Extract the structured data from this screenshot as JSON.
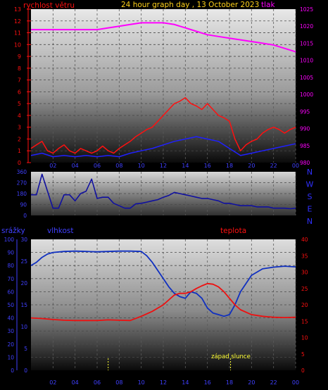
{
  "header": {
    "wind_label": "rychlost větru",
    "title": "24 hour graph day , 13 October 2023",
    "pressure_label": "tlak"
  },
  "lower_header": {
    "rain_label": "srážky",
    "humidity_label": "vlhkost",
    "temp_label": "teplota"
  },
  "sunset_label": "západ slunce",
  "colors": {
    "wind": "#ff1010",
    "gust": "#2020ff",
    "pressure": "#ff00ff",
    "direction": "#1010a0",
    "humidity": "#1030c0",
    "temperature": "#ee1010",
    "title": "#ffd21a",
    "axis_left": "#ff1010",
    "axis_blue": "#4040ff",
    "sunset_marker": "#ffff33"
  },
  "chart_data": [
    {
      "type": "line",
      "title": "24 hour graph day , 13 October 2023",
      "x_ticks": [
        "02",
        "04",
        "06",
        "08",
        "10",
        "12",
        "14",
        "16",
        "18",
        "20",
        "22",
        "00"
      ],
      "left_axis": {
        "label": "rychlost větru",
        "ylim": [
          0,
          13
        ],
        "ticks": [
          "0",
          "1",
          "2",
          "3",
          "4",
          "5",
          "6",
          "7",
          "8",
          "9",
          "10",
          "11",
          "12",
          "13"
        ]
      },
      "right_axis": {
        "label": "tlak",
        "ylim": [
          980,
          1025
        ],
        "ticks": [
          "980",
          "985",
          "990",
          "995",
          "1000",
          "1005",
          "1010",
          "1015",
          "1020",
          "1025"
        ]
      },
      "series": [
        {
          "name": "rychlost větru",
          "axis": "left",
          "x": [
            0,
            0.5,
            1,
            1.5,
            2,
            2.5,
            3,
            3.5,
            4,
            4.5,
            5,
            5.5,
            6,
            6.5,
            7,
            7.5,
            8,
            8.5,
            9,
            9.5,
            10,
            10.5,
            11,
            11.5,
            12,
            12.5,
            13,
            13.5,
            14,
            14.5,
            15,
            15.5,
            16,
            16.5,
            17,
            17.5,
            18,
            18.5,
            19,
            19.5,
            20,
            20.5,
            21,
            21.5,
            22,
            22.5,
            23,
            23.5,
            24
          ],
          "values": [
            1.2,
            1.5,
            1.8,
            1.0,
            0.8,
            1.2,
            1.5,
            1.0,
            0.8,
            1.2,
            1.0,
            0.8,
            1.0,
            1.4,
            1.0,
            0.8,
            1.2,
            1.5,
            1.8,
            2.2,
            2.5,
            2.8,
            3.0,
            3.5,
            4.0,
            4.5,
            5.0,
            5.2,
            5.5,
            5.0,
            4.8,
            4.5,
            5.0,
            4.5,
            4.0,
            3.8,
            3.5,
            2.0,
            1.0,
            1.5,
            1.8,
            2.0,
            2.5,
            2.8,
            3.0,
            2.8,
            2.5,
            2.8,
            3.0
          ]
        },
        {
          "name": "gust",
          "axis": "left",
          "x": [
            0,
            1,
            2,
            3,
            4,
            5,
            6,
            7,
            8,
            9,
            10,
            11,
            12,
            13,
            14,
            15,
            16,
            17,
            18,
            19,
            20,
            21,
            22,
            23,
            24
          ],
          "values": [
            0.6,
            0.8,
            0.5,
            0.6,
            0.5,
            0.6,
            0.5,
            0.6,
            0.5,
            0.8,
            1.0,
            1.2,
            1.5,
            1.8,
            2.0,
            2.2,
            2.0,
            1.8,
            1.2,
            0.6,
            0.8,
            1.0,
            1.2,
            1.4,
            1.6
          ]
        },
        {
          "name": "tlak",
          "axis": "right",
          "x": [
            0,
            1,
            2,
            3,
            4,
            5,
            6,
            7,
            8,
            9,
            10,
            11,
            12,
            13,
            14,
            15,
            16,
            17,
            18,
            19,
            20,
            21,
            22,
            23,
            24
          ],
          "values": [
            1019,
            1019,
            1019,
            1019,
            1019,
            1019,
            1019,
            1019.5,
            1020,
            1020.5,
            1021,
            1021,
            1021,
            1020.5,
            1019.5,
            1018.5,
            1017.5,
            1017,
            1016.5,
            1016,
            1015.5,
            1015,
            1014.5,
            1013.5,
            1012.5
          ]
        }
      ]
    },
    {
      "type": "line",
      "x_ticks": [],
      "y_ticks": [
        "0",
        "90",
        "180",
        "270",
        "360"
      ],
      "ylim": [
        0,
        360
      ],
      "direction_labels": [
        "N",
        "W",
        "S",
        "E",
        "N"
      ],
      "series": [
        {
          "name": "direction",
          "x": [
            0,
            0.5,
            1,
            1.5,
            2,
            2.5,
            3,
            3.5,
            4,
            4.5,
            5,
            5.5,
            6,
            6.5,
            7,
            7.5,
            8,
            8.5,
            9,
            9.5,
            10,
            10.5,
            11,
            11.5,
            12,
            12.5,
            13,
            13.5,
            14,
            14.5,
            15,
            15.5,
            16,
            16.5,
            17,
            17.5,
            18,
            18.5,
            19,
            19.5,
            20,
            20.5,
            21,
            21.5,
            22,
            22.5,
            23,
            23.5,
            24
          ],
          "values": [
            170,
            170,
            340,
            200,
            60,
            60,
            170,
            170,
            120,
            180,
            200,
            300,
            140,
            150,
            150,
            100,
            80,
            60,
            60,
            95,
            100,
            110,
            120,
            130,
            150,
            165,
            190,
            180,
            170,
            160,
            150,
            140,
            140,
            130,
            120,
            100,
            100,
            90,
            80,
            80,
            80,
            70,
            70,
            70,
            60,
            60,
            60,
            55,
            60
          ]
        }
      ]
    },
    {
      "type": "line",
      "x_ticks": [
        "02",
        "04",
        "06",
        "08",
        "10",
        "12",
        "14",
        "16",
        "18",
        "20",
        "22",
        "00"
      ],
      "left_axis_rain": {
        "label": "srážky",
        "ticks": [
          "0",
          "10",
          "20",
          "30",
          "40",
          "50",
          "60",
          "70",
          "80",
          "90",
          "100"
        ]
      },
      "left_axis_humidity": {
        "label": "vlhkost",
        "ylim": [
          0,
          30
        ],
        "ticks": [
          "0",
          "5",
          "10",
          "15",
          "20",
          "25",
          "30"
        ]
      },
      "right_axis": {
        "label": "teplota",
        "ylim": [
          0,
          40
        ],
        "ticks": [
          "0",
          "5",
          "10",
          "15",
          "20",
          "25",
          "30",
          "35",
          "40"
        ]
      },
      "series": [
        {
          "name": "vlhkost",
          "axis": "right",
          "x": [
            0,
            0.5,
            1,
            1.5,
            2,
            3,
            4,
            5,
            6,
            7,
            8,
            9,
            10,
            10.5,
            11,
            11.5,
            12,
            12.5,
            13,
            13.5,
            14,
            14.5,
            15,
            15.5,
            16,
            16.5,
            17,
            17.5,
            18,
            18.5,
            19,
            20,
            21,
            22,
            23,
            24
          ],
          "values": [
            32,
            33,
            34.5,
            35.5,
            36,
            36.3,
            36.4,
            36.3,
            36.2,
            36.3,
            36.4,
            36.4,
            36.3,
            35,
            33,
            30.5,
            28,
            25.5,
            23.5,
            22.5,
            22,
            24,
            23.5,
            22,
            19,
            17.5,
            17,
            16.5,
            17,
            20,
            24,
            29,
            31,
            31.5,
            31.8,
            31.6
          ]
        },
        {
          "name": "teplota",
          "axis": "right",
          "x": [
            0,
            1,
            2,
            3,
            4,
            5,
            6,
            7,
            8,
            9,
            10,
            11,
            12,
            12.5,
            13,
            13.5,
            14,
            14.5,
            15,
            15.5,
            16,
            16.5,
            17,
            17.5,
            18,
            18.5,
            19,
            20,
            21,
            22,
            23,
            24
          ],
          "values": [
            16,
            15.8,
            15.5,
            15.3,
            15.2,
            15.2,
            15.2,
            15.4,
            15.3,
            15.2,
            16.5,
            18,
            20,
            21.5,
            23,
            23.5,
            23.5,
            24,
            25,
            25.8,
            26.5,
            26.3,
            25.5,
            24,
            22,
            20,
            18.5,
            17,
            16.5,
            16.2,
            16.1,
            16.2
          ]
        },
        {
          "name": "srážky",
          "axis": "rain",
          "x": [
            0,
            24
          ],
          "values": [
            0,
            0
          ]
        }
      ],
      "markers": [
        {
          "label": "",
          "x": 7.0
        },
        {
          "label": "západ slunce",
          "x": 18.1
        }
      ]
    }
  ]
}
